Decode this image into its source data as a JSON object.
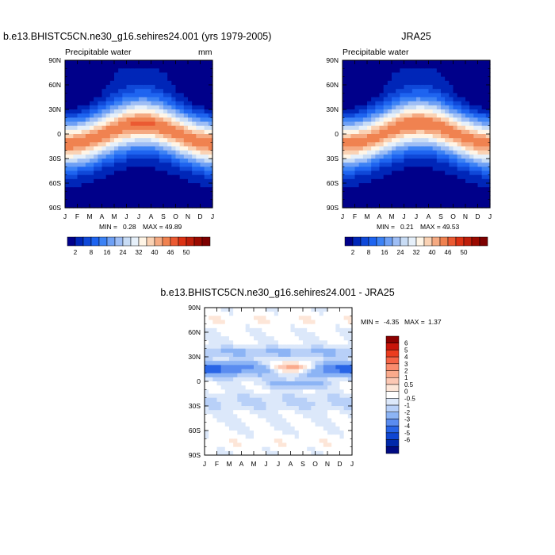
{
  "chart_data": [
    {
      "type": "heatmap",
      "title": "b.e13.BHISTC5CN.ne30_g16.sehires24.001 (yrs 1979-2005)",
      "subtitle": "Precipitable water",
      "units": "mm",
      "x_ticks": [
        "J",
        "F",
        "M",
        "A",
        "M",
        "J",
        "J",
        "A",
        "S",
        "O",
        "N",
        "D",
        "J"
      ],
      "y_ticks": [
        "90N",
        "60N",
        "30N",
        "0",
        "30S",
        "60S",
        "90S"
      ],
      "ylim": [
        -90,
        90
      ],
      "min_label": "MIN =",
      "min": "0.28",
      "max_label": "MAX =",
      "max": "49.89",
      "colorbar": {
        "orientation": "horizontal",
        "labels": [
          "2",
          "8",
          "16",
          "24",
          "32",
          "40",
          "46",
          "50"
        ],
        "colors": [
          "#00008a",
          "#0026b8",
          "#0f48d8",
          "#1e64f0",
          "#3c82f5",
          "#6ea0f5",
          "#9ebef5",
          "#c8dcf5",
          "#e6f0fa",
          "#fff5e6",
          "#fad2b4",
          "#f5aa82",
          "#f08250",
          "#eb5a32",
          "#dc3214",
          "#be1e0a",
          "#9b0a00",
          "#7d0000"
        ]
      }
    },
    {
      "type": "heatmap",
      "title": "JRA25",
      "subtitle": "Precipitable water",
      "x_ticks": [
        "J",
        "F",
        "M",
        "A",
        "M",
        "J",
        "J",
        "A",
        "S",
        "O",
        "N",
        "D",
        "J"
      ],
      "y_ticks": [
        "90N",
        "60N",
        "30N",
        "0",
        "30S",
        "60S",
        "90S"
      ],
      "ylim": [
        -90,
        90
      ],
      "min_label": "MIN =",
      "min": "0.21",
      "max_label": "MAX =",
      "max": "49.53",
      "colorbar": {
        "orientation": "horizontal",
        "labels": [
          "2",
          "8",
          "16",
          "24",
          "32",
          "40",
          "46",
          "50"
        ],
        "colors": [
          "#00008a",
          "#0026b8",
          "#0f48d8",
          "#1e64f0",
          "#3c82f5",
          "#6ea0f5",
          "#9ebef5",
          "#c8dcf5",
          "#e6f0fa",
          "#fff5e6",
          "#fad2b4",
          "#f5aa82",
          "#f08250",
          "#eb5a32",
          "#dc3214",
          "#be1e0a",
          "#9b0a00",
          "#7d0000"
        ]
      }
    },
    {
      "type": "heatmap",
      "title": "b.e13.BHISTC5CN.ne30_g16.sehires24.001 - JRA25",
      "x_ticks": [
        "J",
        "F",
        "M",
        "A",
        "M",
        "J",
        "J",
        "A",
        "S",
        "O",
        "N",
        "D",
        "J"
      ],
      "y_ticks": [
        "90N",
        "60N",
        "30N",
        "0",
        "30S",
        "60S",
        "90S"
      ],
      "ylim": [
        -90,
        90
      ],
      "min_label": "MIN =",
      "min": "-4.35",
      "max_label": "MAX =",
      "max": "1.37",
      "colorbar": {
        "orientation": "vertical",
        "labels": [
          "6",
          "5",
          "4",
          "3",
          "2",
          "1",
          "0.5",
          "0",
          "-0.5",
          "-1",
          "-2",
          "-3",
          "-4",
          "-5",
          "-6"
        ],
        "colors": [
          "#8c0000",
          "#c8140a",
          "#eb3c1e",
          "#f56446",
          "#fa8c6e",
          "#faaa8c",
          "#fcc8b4",
          "#fde6d8",
          "#ffffff",
          "#dce8fa",
          "#b8d0f8",
          "#8cb4f5",
          "#5a8cf0",
          "#2864e6",
          "#0f46d2",
          "#0028aa",
          "#000a82"
        ]
      }
    }
  ]
}
